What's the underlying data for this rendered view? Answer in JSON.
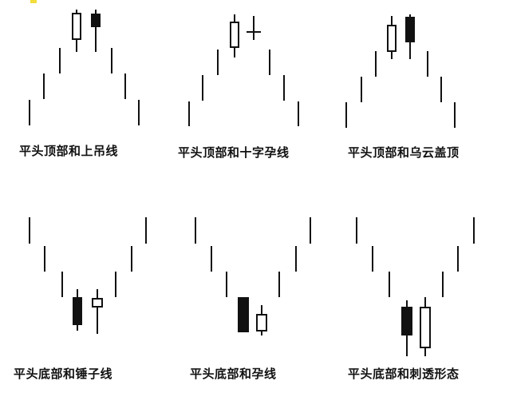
{
  "panels": [
    {
      "caption": "平头顶部和上吊线",
      "pattern": "top",
      "signal": "hanging-man"
    },
    {
      "caption": "平头顶部和十字孕线",
      "pattern": "top",
      "signal": "doji-harami"
    },
    {
      "caption": "平头顶部和乌云盖顶",
      "pattern": "top",
      "signal": "dark-cloud-cover"
    },
    {
      "caption": "平头底部和锤子线",
      "pattern": "bottom",
      "signal": "hammer"
    },
    {
      "caption": "平头底部和孕线",
      "pattern": "bottom",
      "signal": "harami"
    },
    {
      "caption": "平头底部和刺透形态",
      "pattern": "bottom",
      "signal": "piercing"
    }
  ],
  "colors": {
    "stroke": "#111111",
    "bullish_fill": "#ffffff",
    "bearish_fill": "#111111",
    "accent": "#f2dd3a"
  }
}
